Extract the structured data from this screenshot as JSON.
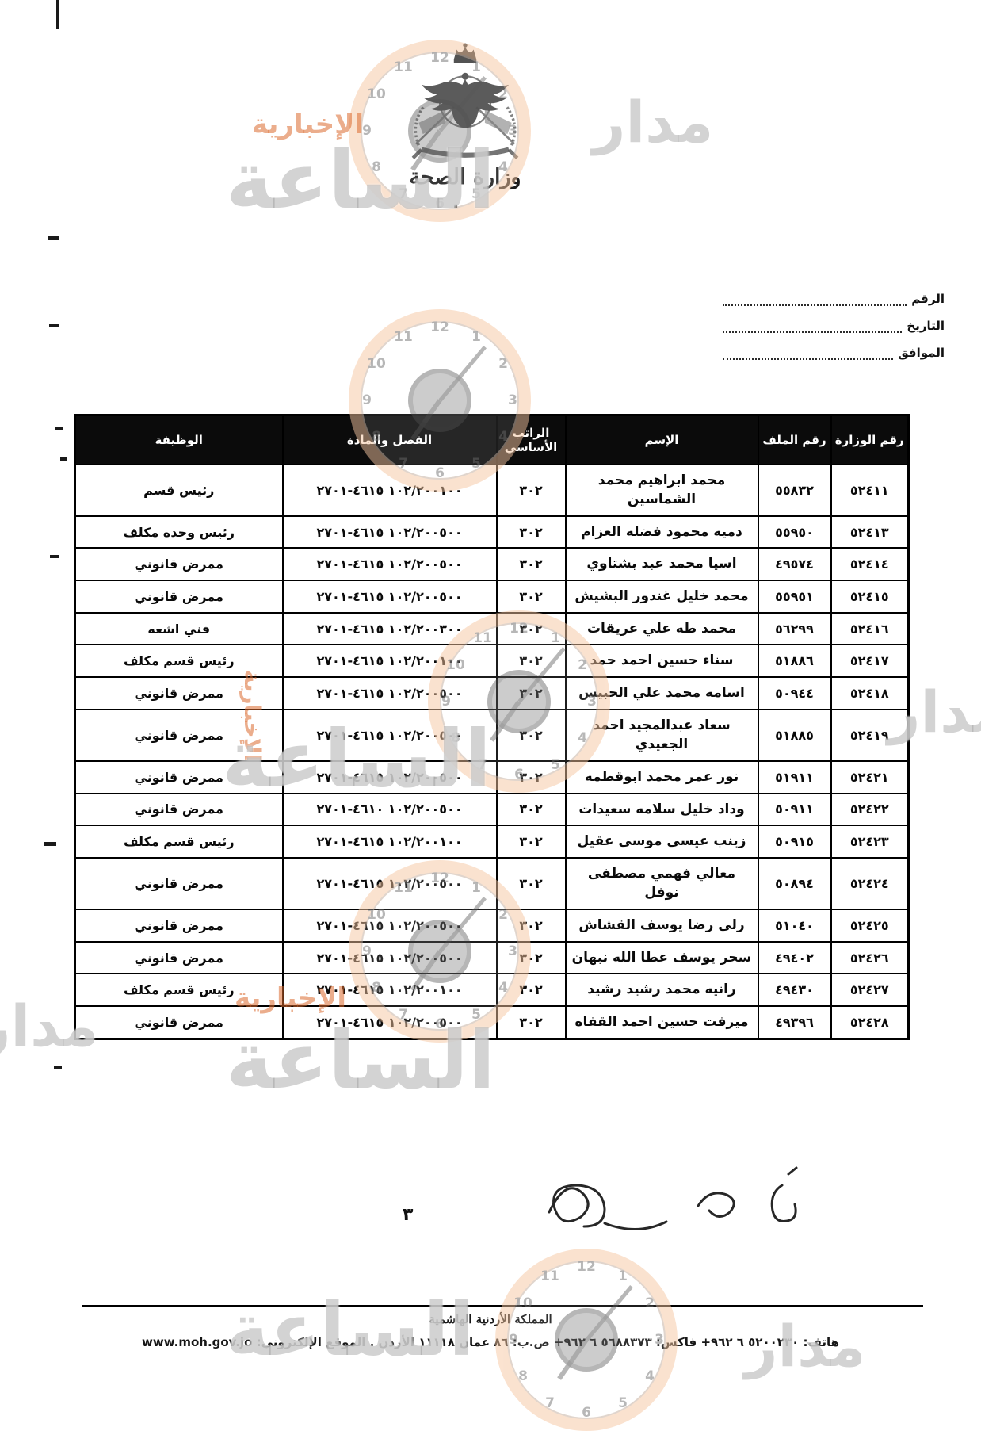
{
  "document": {
    "ministry_name": "وزارة الصحة",
    "emblem_caption_dot": ".",
    "ref_fields": [
      {
        "label": "الرقم"
      },
      {
        "label": "التاريخ"
      },
      {
        "label": "الموافق"
      }
    ],
    "page_number": "٣",
    "kingdom_name": "المملكة الأردنية الهاشمية",
    "contact_line": "هاتف: ٥٢٠٠٢٣٠ ٦ ٩٦٢+ فاكس: ٥٦٨٨٣٧٣ ٦ ٩٦٢+ ص.ب: ٨٦ عمان ١١١١٨ الأردن . الموقع الإلكتروني: www.moh.gov.jo"
  },
  "table": {
    "headers": {
      "ministry_no": "رقم الوزارة",
      "file_no": "رقم الملف",
      "name": "الإسم",
      "basic_salary": "الراتب الأساسي",
      "chapter_article": "الفصل والمادة",
      "job_title": "الوظيفة"
    },
    "rows": [
      {
        "ministry_no": "٥٢٤١١",
        "file_no": "٥٥٨٣٢",
        "name": "محمد ابراهيم محمد الشماسين",
        "basic_salary": "٣٠٢",
        "chapter_article": "١٠٢/٢٠٠١٠٠ ٤٦١٥-٢٧٠١",
        "job_title": "رئيس قسم"
      },
      {
        "ministry_no": "٥٢٤١٣",
        "file_no": "٥٥٩٥٠",
        "name": "دميه محمود فضله العزام",
        "basic_salary": "٣٠٢",
        "chapter_article": "١٠٢/٢٠٠٥٠٠ ٤٦١٥-٢٧٠١",
        "job_title": "رئيس وحده مكلف"
      },
      {
        "ministry_no": "٥٢٤١٤",
        "file_no": "٤٩٥٧٤",
        "name": "اسيا محمد عبد بشتاوي",
        "basic_salary": "٣٠٢",
        "chapter_article": "١٠٢/٢٠٠٥٠٠ ٤٦١٥-٢٧٠١",
        "job_title": "ممرض قانوني"
      },
      {
        "ministry_no": "٥٢٤١٥",
        "file_no": "٥٥٩٥١",
        "name": "محمد خليل غندور البشيش",
        "basic_salary": "٣٠٢",
        "chapter_article": "١٠٢/٢٠٠٥٠٠ ٤٦١٥-٢٧٠١",
        "job_title": "ممرض قانوني"
      },
      {
        "ministry_no": "٥٢٤١٦",
        "file_no": "٥٦٢٩٩",
        "name": "محمد طه علي عريقات",
        "basic_salary": "٣٠٢",
        "chapter_article": "١٠٢/٢٠٠٣٠٠ ٤٦١٥-٢٧٠١",
        "job_title": "فني اشعه"
      },
      {
        "ministry_no": "٥٢٤١٧",
        "file_no": "٥١٨٨٦",
        "name": "سناء حسين احمد حمد",
        "basic_salary": "٣٠٢",
        "chapter_article": "١٠٢/٢٠٠١٠٠ ٤٦١٥-٢٧٠١",
        "job_title": "رئيس قسم مكلف"
      },
      {
        "ministry_no": "٥٢٤١٨",
        "file_no": "٥٠٩٤٤",
        "name": "اسامه محمد علي الحبيس",
        "basic_salary": "٣٠٢",
        "chapter_article": "١٠٢/٢٠٠٥٠٠ ٤٦١٥-٢٧٠١",
        "job_title": "ممرض قانوني"
      },
      {
        "ministry_no": "٥٢٤١٩",
        "file_no": "٥١٨٨٥",
        "name": "سعاد عبدالمجيد احمد الجعيدي",
        "basic_salary": "٣٠٢",
        "chapter_article": "١٠٢/٢٠٠٥٠٠ ٤٦١٥-٢٧٠١",
        "job_title": "ممرض قانوني"
      },
      {
        "ministry_no": "٥٢٤٢١",
        "file_no": "٥١٩١١",
        "name": "نور عمر محمد ابوقطمه",
        "basic_salary": "٣٠٢",
        "chapter_article": "١٠٢/٢٠٠٥٠٠ ٤٦١٥-٢٧٠١",
        "job_title": "ممرض قانوني"
      },
      {
        "ministry_no": "٥٢٤٢٢",
        "file_no": "٥٠٩١١",
        "name": "وداد خليل سلامه سعيدات",
        "basic_salary": "٣٠٢",
        "chapter_article": "١٠٢/٢٠٠٥٠٠ ٤٦١٠-٢٧٠١",
        "job_title": "ممرض قانوني"
      },
      {
        "ministry_no": "٥٢٤٢٣",
        "file_no": "٥٠٩١٥",
        "name": "زينب عيسى موسى عقيل",
        "basic_salary": "٣٠٢",
        "chapter_article": "١٠٢/٢٠٠١٠٠ ٤٦١٥-٢٧٠١",
        "job_title": "رئيس قسم مكلف"
      },
      {
        "ministry_no": "٥٢٤٢٤",
        "file_no": "٥٠٨٩٤",
        "name": "معالي فهمي مصطفى نوفل",
        "basic_salary": "٣٠٢",
        "chapter_article": "١٠٢/٢٠٠٥٠٠ ٤٦١٥-٢٧٠١",
        "job_title": "ممرض قانوني"
      },
      {
        "ministry_no": "٥٢٤٢٥",
        "file_no": "٥١٠٤٠",
        "name": "رلى رضا يوسف القشاش",
        "basic_salary": "٣٠٢",
        "chapter_article": "١٠٢/٢٠٠٥٠٠ ٤٦١٥-٢٧٠١",
        "job_title": "ممرض قانوني"
      },
      {
        "ministry_no": "٥٢٤٢٦",
        "file_no": "٤٩٤٠٢",
        "name": "سحر يوسف عطا الله نبهان",
        "basic_salary": "٣٠٢",
        "chapter_article": "١٠٢/٢٠٠٥٠٠ ٤٦١٥-٢٧٠١",
        "job_title": "ممرض قانوني"
      },
      {
        "ministry_no": "٥٢٤٢٧",
        "file_no": "٤٩٤٣٠",
        "name": "رانيه محمد رشيد رشيد",
        "basic_salary": "٣٠٢",
        "chapter_article": "١٠٢/٢٠٠١٠٠ ٤٦١٥-٢٧٠١",
        "job_title": "رئيس قسم مكلف"
      },
      {
        "ministry_no": "٥٢٤٢٨",
        "file_no": "٤٩٣٩٦",
        "name": "ميرفت حسين احمد القفاه",
        "basic_salary": "٣٠٢",
        "chapter_article": "١٠٢/٢٠٠٥٠٠ ٤٦١٥-٢٧٠١",
        "job_title": "ممرض قانوني"
      }
    ]
  },
  "watermark": {
    "brand_prefix": "مدار",
    "brand_main": "الساعة",
    "brand_suffix": "الإخبارية",
    "clock_numerals": [
      "12",
      "1",
      "2",
      "3",
      "4",
      "5",
      "6",
      "7",
      "8",
      "9",
      "10",
      "11"
    ],
    "colors": {
      "accent_orange": "#db6a2d",
      "ring_peach": "#f6c6a0",
      "text_gray": "#929292"
    }
  }
}
